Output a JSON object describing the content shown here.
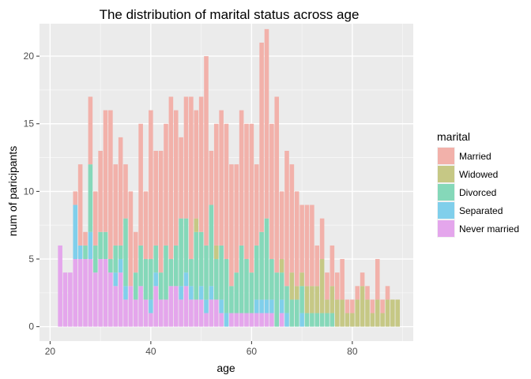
{
  "chart_data": {
    "type": "bar",
    "stacked": true,
    "title": "The distribution of marital status across age",
    "xlabel": "age",
    "ylabel": "num of paricipants",
    "xlim": [
      17.9,
      92.1
    ],
    "ylim": [
      -1.07,
      22.4
    ],
    "x_ticks": [
      20,
      40,
      60,
      80
    ],
    "y_ticks": [
      0,
      5,
      10,
      15,
      20
    ],
    "grid": true,
    "legend_position": "right",
    "legend_title": "marital",
    "x": [
      22,
      23,
      24,
      25,
      26,
      27,
      28,
      29,
      30,
      31,
      32,
      33,
      34,
      35,
      36,
      37,
      38,
      39,
      40,
      41,
      42,
      43,
      44,
      45,
      46,
      47,
      48,
      49,
      50,
      51,
      52,
      53,
      54,
      55,
      56,
      57,
      58,
      59,
      60,
      61,
      62,
      63,
      64,
      65,
      66,
      67,
      68,
      69,
      70,
      71,
      72,
      73,
      74,
      75,
      76,
      77,
      78,
      79,
      80,
      81,
      82,
      83,
      84,
      85,
      86,
      87,
      88,
      89
    ],
    "series": [
      {
        "name": "Never married",
        "color": "#e4a6ec",
        "values": [
          6,
          4,
          4,
          5,
          5,
          5,
          5,
          4,
          5,
          5,
          4,
          3,
          4,
          2,
          3,
          2,
          3,
          2,
          1,
          3,
          2,
          2,
          3,
          3,
          2,
          3,
          2,
          2,
          2,
          1,
          2,
          2,
          1,
          0,
          1,
          1,
          1,
          1,
          1,
          1,
          1,
          1,
          1,
          0,
          1,
          0,
          0,
          0,
          0,
          0,
          0,
          0,
          0,
          0,
          0,
          0,
          0,
          0,
          0,
          0,
          0,
          0,
          0,
          0,
          0,
          0,
          0,
          0
        ]
      },
      {
        "name": "Separated",
        "color": "#80cfeb",
        "values": [
          0,
          0,
          0,
          4,
          1,
          0,
          2,
          0,
          0,
          0,
          0,
          1,
          1,
          1,
          0,
          0,
          0,
          0,
          1,
          1,
          0,
          0,
          0,
          0,
          1,
          1,
          1,
          0,
          1,
          1,
          1,
          0,
          1,
          1,
          0,
          0,
          0,
          0,
          0,
          1,
          1,
          1,
          1,
          0,
          1,
          1,
          0,
          0,
          1,
          0,
          0,
          0,
          0,
          0,
          0,
          0,
          0,
          0,
          0,
          0,
          0,
          0,
          0,
          0,
          0,
          0,
          0,
          0
        ]
      },
      {
        "name": "Divorced",
        "color": "#85d8b9",
        "values": [
          0,
          0,
          0,
          0,
          0,
          1,
          5,
          2,
          2,
          2,
          1,
          2,
          1,
          5,
          0,
          2,
          3,
          3,
          3,
          2,
          2,
          4,
          2,
          3,
          5,
          4,
          2,
          5,
          4,
          4,
          6,
          3,
          4,
          4,
          2,
          3,
          5,
          4,
          3,
          4,
          5,
          6,
          3,
          4,
          2,
          2,
          2,
          2,
          2,
          1,
          1,
          1,
          1,
          1,
          1,
          0,
          0,
          0,
          0,
          0,
          0,
          0,
          0,
          0,
          0,
          0,
          0,
          0
        ]
      },
      {
        "name": "Widowed",
        "color": "#c6c885",
        "values": [
          0,
          0,
          0,
          0,
          0,
          0,
          0,
          0,
          0,
          0,
          0,
          0,
          0,
          0,
          0,
          0,
          0,
          0,
          0,
          0,
          0,
          0,
          0,
          0,
          0,
          0,
          0,
          1,
          0,
          0,
          0,
          1,
          0,
          0,
          0,
          0,
          0,
          0,
          0,
          0,
          0,
          0,
          0,
          0,
          1,
          0,
          2,
          1,
          1,
          2,
          2,
          2,
          4,
          1,
          2,
          2,
          2,
          1,
          1,
          2,
          3,
          2,
          1,
          2,
          1,
          2,
          2,
          2
        ]
      },
      {
        "name": "Married",
        "color": "#f2b1aa",
        "values": [
          0,
          0,
          0,
          1,
          6,
          1,
          5,
          4,
          6,
          9,
          11,
          6,
          8,
          4,
          7,
          3,
          9,
          5,
          11,
          7,
          9,
          9,
          12,
          10,
          6,
          9,
          12,
          8,
          10,
          14,
          4,
          9,
          10,
          10,
          9,
          8,
          10,
          10,
          11,
          6,
          14,
          14,
          10,
          13,
          5,
          10,
          8,
          7,
          5,
          6,
          6,
          3,
          3,
          2,
          3,
          2,
          3,
          1,
          1,
          1,
          1,
          1,
          1,
          3,
          1,
          1,
          0,
          0
        ]
      }
    ]
  }
}
